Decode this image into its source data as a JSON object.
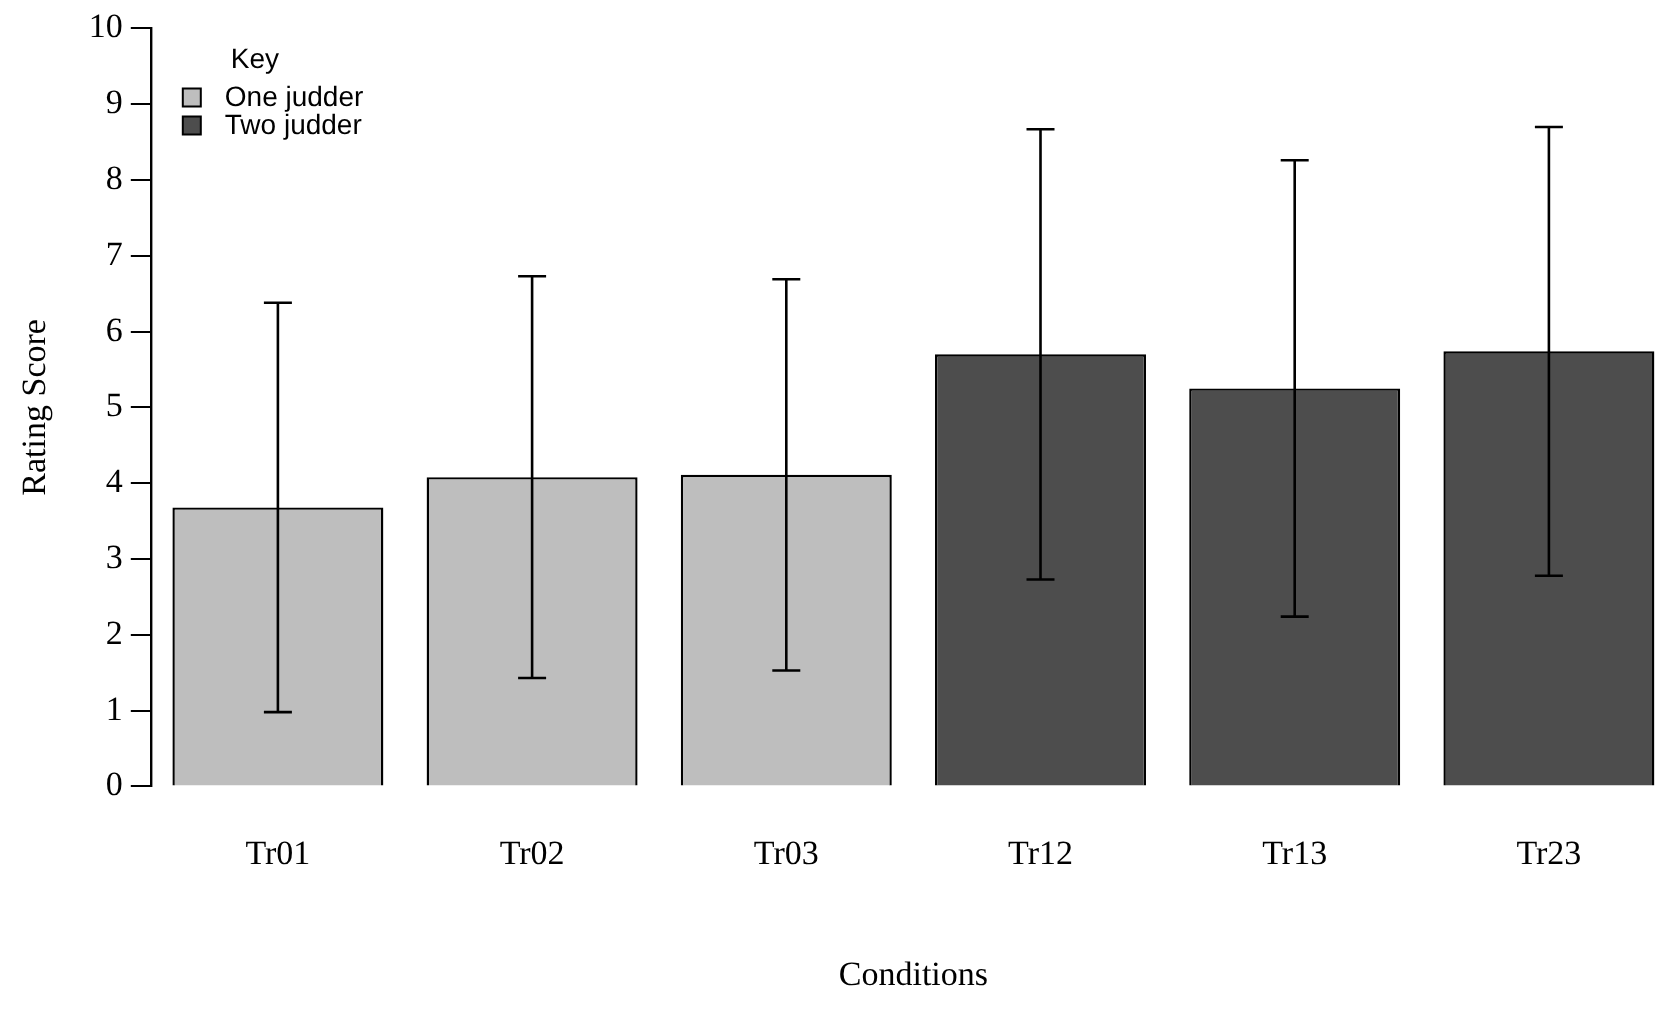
{
  "chart_data": {
    "type": "bar",
    "xlabel": "Conditions",
    "ylabel": "Rating Score",
    "legend_title": "Key",
    "legend": "top left",
    "categories": [
      "Tr01",
      "Tr02",
      "Tr03",
      "Tr12",
      "Tr13",
      "Tr23"
    ],
    "series": [
      {
        "name": "One judder",
        "color": "#bebebe",
        "values": [
          3.68,
          4.08,
          4.11,
          null,
          null,
          null
        ],
        "errors": [
          2.7,
          2.65,
          2.58,
          null,
          null,
          null
        ]
      },
      {
        "name": "Two judder",
        "color": "#4d4d4d",
        "values": [
          null,
          null,
          null,
          5.7,
          5.25,
          5.74
        ],
        "errors": [
          null,
          null,
          null,
          2.97,
          3.01,
          2.96
        ]
      }
    ],
    "ylim": [
      0,
      10
    ],
    "yticks": [
      0,
      1,
      2,
      3,
      4,
      5,
      6,
      7,
      8,
      9,
      10
    ],
    "grid": false
  }
}
